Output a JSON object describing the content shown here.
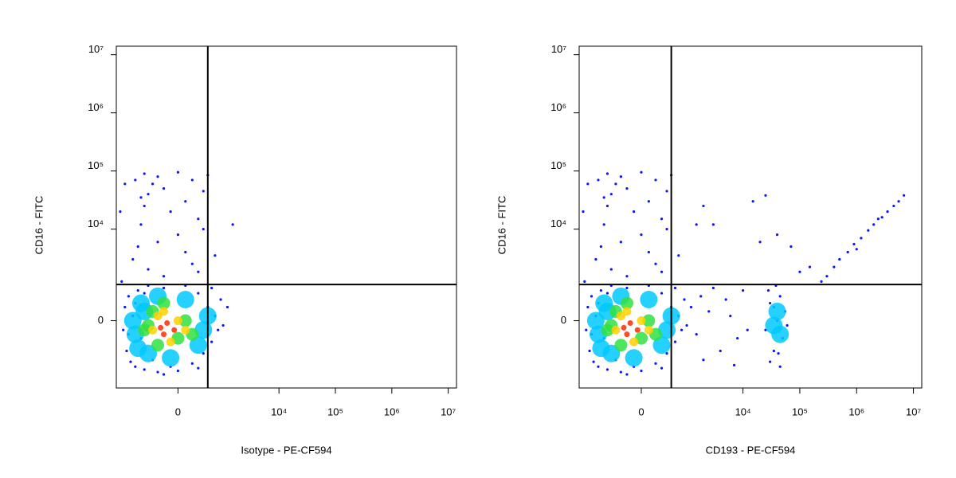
{
  "chart_data": [
    {
      "type": "scatter",
      "x_label": "Isotype - PE-CF594",
      "y_label": "CD16 - FITC",
      "xscale": "logicle",
      "yscale": "logicle",
      "xlim": [
        -2000,
        14000000
      ],
      "ylim": [
        -3800,
        14000000
      ],
      "xticks": [
        0,
        {
          "value": 10000,
          "label": "10⁴"
        },
        {
          "value": 100000,
          "label": "10⁵"
        },
        {
          "value": 1000000,
          "label": "10⁶"
        },
        {
          "value": 10000000,
          "label": "10⁷"
        }
      ],
      "yticks": [
        0,
        {
          "value": 10000,
          "label": "10⁴"
        },
        {
          "value": 100000,
          "label": "10⁵"
        },
        {
          "value": 1000000,
          "label": "10⁶"
        },
        {
          "value": 10000000,
          "label": "10⁷"
        }
      ],
      "gate": {
        "x": 500,
        "y": 1050
      },
      "series": [
        {
          "color": "#0a14ff",
          "x": [
            -1500,
            -1400,
            -1300,
            -1200,
            -1100,
            -1000,
            -900,
            -800,
            -700,
            -600,
            -500,
            -400,
            -300,
            -200,
            -100,
            0,
            100,
            200,
            300,
            400,
            500,
            600,
            700,
            800,
            900,
            1000,
            -1200,
            -900,
            300,
            -600,
            600,
            -1600,
            -200,
            1200,
            -1000,
            -800,
            -700,
            -600,
            -500,
            -400,
            -300,
            -200,
            -100,
            0,
            100,
            200,
            300,
            400,
            -900,
            -300,
            -500,
            100,
            500,
            0,
            -700,
            200,
            400,
            -1400,
            -200,
            300,
            700,
            -600,
            1500,
            -1700
          ],
          "values": [
            -200,
            300,
            -800,
            600,
            -1300,
            100,
            -1600,
            800,
            -400,
            -1800,
            1000,
            -1200,
            -2000,
            900,
            -1600,
            -1900,
            1000,
            -1400,
            700,
            -900,
            300,
            -500,
            100,
            -200,
            500,
            -100,
            -300,
            400,
            -1700,
            700,
            900,
            1200,
            -2200,
            300,
            3000,
            5000,
            12000,
            25000,
            40000,
            60000,
            80000,
            50000,
            20000,
            8000,
            30000,
            70000,
            15000,
            45000,
            70000,
            6000,
            2000,
            4000,
            85000,
            95000,
            35000,
            2500,
            10000,
            60000,
            1500,
            1800,
            3500,
            90000,
            12000,
            20000
          ]
        },
        {
          "color": "#00c8ff",
          "x": [
            -900,
            -700,
            -500,
            -300,
            -100,
            100,
            300,
            -800,
            -600,
            400,
            -1000,
            500
          ],
          "values": [
            -300,
            400,
            -900,
            600,
            -1100,
            500,
            -600,
            -700,
            200,
            -200,
            0,
            100
          ]
        },
        {
          "color": "#30e040",
          "x": [
            -600,
            -400,
            -300,
            -200,
            0,
            100,
            -500,
            200
          ],
          "values": [
            -200,
            200,
            -600,
            400,
            -400,
            0,
            -100,
            -300
          ]
        },
        {
          "color": "#ffd000",
          "x": [
            -400,
            -200,
            -100,
            0,
            -300,
            100
          ],
          "values": [
            -200,
            200,
            -500,
            0,
            100,
            -200
          ]
        },
        {
          "color": "#ff2a00",
          "x": [
            -250,
            -150,
            -50,
            -200
          ],
          "values": [
            -150,
            -50,
            -200,
            -300
          ]
        }
      ]
    },
    {
      "type": "scatter",
      "x_label": "CD193 - PE-CF594",
      "y_label": "CD16 - FITC",
      "xscale": "logicle",
      "yscale": "logicle",
      "xlim": [
        -2000,
        14000000
      ],
      "ylim": [
        -3800,
        14000000
      ],
      "xticks": [
        0,
        {
          "value": 10000,
          "label": "10⁴"
        },
        {
          "value": 100000,
          "label": "10⁵"
        },
        {
          "value": 1000000,
          "label": "10⁶"
        },
        {
          "value": 10000000,
          "label": "10⁷"
        }
      ],
      "yticks": [
        0,
        {
          "value": 10000,
          "label": "10⁴"
        },
        {
          "value": 100000,
          "label": "10⁵"
        },
        {
          "value": 1000000,
          "label": "10⁶"
        },
        {
          "value": 10000000,
          "label": "10⁷"
        }
      ],
      "gate": {
        "x": 500,
        "y": 1050
      },
      "series": [
        {
          "color": "#0a14ff",
          "x": [
            -1500,
            -1400,
            -1300,
            -1200,
            -1100,
            -1000,
            -900,
            -800,
            -700,
            -600,
            -500,
            -400,
            -300,
            -200,
            -100,
            0,
            100,
            200,
            300,
            400,
            500,
            600,
            700,
            800,
            900,
            1000,
            -1200,
            -900,
            300,
            -600,
            600,
            -1600,
            -200,
            1200,
            -1000,
            -800,
            -700,
            -600,
            -500,
            -400,
            -300,
            -200,
            -100,
            0,
            100,
            200,
            300,
            400,
            -900,
            -300,
            -500,
            100,
            500,
            0,
            -700,
            200,
            400,
            -1400,
            -200,
            300,
            700,
            -600,
            1500,
            -1700,
            1500,
            2500,
            4000,
            6000,
            8000,
            3000,
            12000,
            2000,
            5000,
            10000,
            1800,
            7000,
            25000,
            30000,
            35000,
            40000,
            45000,
            50000,
            55000,
            30000,
            45000,
            38000,
            60000,
            28000,
            42000,
            35000,
            240000,
            300000,
            400000,
            500000,
            700000,
            900000,
            1200000,
            1600000,
            2000000,
            2800000,
            3500000,
            4500000,
            5500000,
            6800000,
            1000000,
            2400000,
            15000,
            25000,
            40000,
            20000,
            100000,
            150000,
            70000,
            3000,
            2000
          ],
          "values": [
            -200,
            300,
            -800,
            600,
            -1300,
            100,
            -1600,
            800,
            -400,
            -1800,
            1000,
            -1200,
            -2000,
            900,
            -1600,
            -1900,
            1000,
            -1400,
            700,
            -900,
            300,
            -500,
            100,
            -200,
            500,
            -100,
            -300,
            400,
            -1700,
            700,
            900,
            1200,
            -2200,
            300,
            3000,
            5000,
            12000,
            25000,
            40000,
            60000,
            80000,
            50000,
            20000,
            8000,
            30000,
            70000,
            15000,
            45000,
            70000,
            6000,
            2000,
            4000,
            85000,
            95000,
            35000,
            2500,
            10000,
            60000,
            1500,
            1800,
            3500,
            90000,
            12000,
            20000,
            -300,
            200,
            -800,
            100,
            -400,
            900,
            -200,
            -1200,
            500,
            800,
            600,
            -1500,
            -200,
            400,
            -800,
            0,
            600,
            -400,
            200,
            -1300,
            -1600,
            1000,
            -100,
            800,
            -900,
            300,
            1200,
            1500,
            2200,
            3000,
            4000,
            5500,
            7000,
            9500,
            12000,
            16000,
            20000,
            25000,
            30000,
            38000,
            4500,
            15000,
            30000,
            38000,
            8000,
            6000,
            1800,
            2200,
            5000,
            12000,
            25000
          ]
        },
        {
          "color": "#00c8ff",
          "x": [
            -900,
            -700,
            -500,
            -300,
            -100,
            100,
            300,
            -800,
            -600,
            400,
            -1000,
            500,
            35000,
            40000,
            45000
          ],
          "values": [
            -300,
            400,
            -900,
            600,
            -1100,
            500,
            -600,
            -700,
            200,
            -200,
            0,
            100,
            -100,
            200,
            -300
          ]
        },
        {
          "color": "#30e040",
          "x": [
            -600,
            -400,
            -300,
            -200,
            0,
            100,
            -500,
            200
          ],
          "values": [
            -200,
            200,
            -600,
            400,
            -400,
            0,
            -100,
            -300
          ]
        },
        {
          "color": "#ffd000",
          "x": [
            -400,
            -200,
            -100,
            0,
            -300,
            100
          ],
          "values": [
            -200,
            200,
            -500,
            0,
            100,
            -200
          ]
        },
        {
          "color": "#ff2a00",
          "x": [
            -250,
            -150,
            -50,
            -200
          ],
          "values": [
            -150,
            -50,
            -200,
            -300
          ]
        }
      ]
    }
  ]
}
